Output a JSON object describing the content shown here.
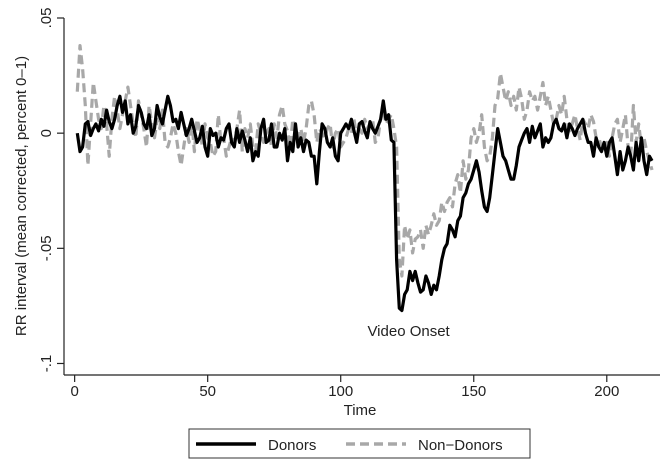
{
  "chart_data": {
    "type": "line",
    "title": "",
    "xlabel": "Time",
    "ylabel": "RR interval (mean corrected, percent 0–1)",
    "xlim": [
      -4,
      220
    ],
    "ylim": [
      -0.105,
      0.05
    ],
    "xticks": [
      0,
      50,
      100,
      150,
      200
    ],
    "xtick_labels": [
      "0",
      "50",
      "100",
      "150",
      "200"
    ],
    "yticks": [
      -0.1,
      -0.05,
      0,
      0.05
    ],
    "ytick_labels": [
      "-.1",
      "-.05",
      "0",
      ".05"
    ],
    "grid": false,
    "legend_position": "bottom",
    "annotation": {
      "text": "Video Onset",
      "x": 121,
      "y": -0.086
    },
    "series": [
      {
        "name": "Donors",
        "color": "#000000",
        "style": "solid",
        "x": [
          1,
          2,
          3,
          4,
          5,
          6,
          7,
          8,
          9,
          10,
          11,
          12,
          13,
          14,
          15,
          16,
          17,
          18,
          19,
          20,
          21,
          22,
          23,
          24,
          25,
          26,
          27,
          28,
          29,
          30,
          31,
          32,
          33,
          34,
          35,
          36,
          37,
          38,
          39,
          40,
          41,
          42,
          43,
          44,
          45,
          46,
          47,
          48,
          49,
          50,
          51,
          52,
          53,
          54,
          55,
          56,
          57,
          58,
          59,
          60,
          61,
          62,
          63,
          64,
          65,
          66,
          67,
          68,
          69,
          70,
          71,
          72,
          73,
          74,
          75,
          76,
          77,
          78,
          79,
          80,
          81,
          82,
          83,
          84,
          85,
          86,
          87,
          88,
          89,
          90,
          91,
          92,
          93,
          94,
          95,
          96,
          97,
          98,
          99,
          100,
          101,
          102,
          103,
          104,
          105,
          106,
          107,
          108,
          109,
          110,
          111,
          112,
          113,
          114,
          115,
          116,
          117,
          118,
          119,
          120,
          121,
          122,
          123,
          124,
          125,
          126,
          127,
          128,
          129,
          130,
          131,
          132,
          133,
          134,
          135,
          136,
          137,
          138,
          139,
          140,
          141,
          142,
          143,
          144,
          145,
          146,
          147,
          148,
          149,
          150,
          151,
          152,
          153,
          154,
          155,
          156,
          157,
          158,
          159,
          160,
          161,
          162,
          163,
          164,
          165,
          166,
          167,
          168,
          169,
          170,
          171,
          172,
          173,
          174,
          175,
          176,
          177,
          178,
          179,
          180,
          181,
          182,
          183,
          184,
          185,
          186,
          187,
          188,
          189,
          190,
          191,
          192,
          193,
          194,
          195,
          196,
          197,
          198,
          199,
          200,
          201,
          202,
          203,
          204,
          205,
          206,
          207,
          208,
          209,
          210,
          211,
          212,
          213,
          214,
          215,
          216,
          217
        ],
        "values": [
          0,
          -0.008,
          -0.006,
          0.004,
          0.005,
          -0.001,
          0.002,
          0.004,
          0.001,
          0.006,
          0.003,
          0.01,
          0.005,
          0.002,
          0.006,
          0.012,
          0.016,
          0.009,
          0.014,
          0.004,
          0.008,
          0.0,
          0.003,
          0.012,
          0.009,
          0.004,
          0.002,
          0.008,
          -0.001,
          0.002,
          0.012,
          0.007,
          0.004,
          0.01,
          0.016,
          0.012,
          0.005,
          0.006,
          0.002,
          0.009,
          0.004,
          -0.001,
          0.002,
          0.006,
          0.001,
          -0.004,
          -0.002,
          0.003,
          -0.006,
          -0.01,
          0.002,
          -0.001,
          0.0,
          -0.006,
          -0.002,
          -0.003,
          0.002,
          0.004,
          -0.004,
          -0.006,
          0.002,
          -0.004,
          0.001,
          -0.003,
          -0.008,
          -0.002,
          -0.012,
          -0.008,
          -0.01,
          0.002,
          0.006,
          -0.004,
          -0.003,
          0.004,
          -0.006,
          -0.006,
          0.0,
          -0.003,
          0.002,
          -0.012,
          -0.004,
          -0.008,
          0.004,
          -0.006,
          -0.002,
          -0.008,
          -0.003,
          -0.004,
          -0.01,
          -0.01,
          -0.022,
          -0.008,
          0.004,
          0.002,
          -0.004,
          -0.006,
          -0.002,
          -0.01,
          -0.012,
          0.0,
          0.002,
          0.004,
          0.002,
          0.006,
          0.001,
          -0.004,
          0.004,
          0.005,
          0.001,
          -0.002,
          0.005,
          0.002,
          0.0,
          0.003,
          0.006,
          0.014,
          0.006,
          0.008,
          -0.003,
          -0.004,
          -0.055,
          -0.076,
          -0.077,
          -0.07,
          -0.068,
          -0.06,
          -0.064,
          -0.06,
          -0.065,
          -0.069,
          -0.068,
          -0.062,
          -0.065,
          -0.07,
          -0.066,
          -0.068,
          -0.062,
          -0.055,
          -0.05,
          -0.048,
          -0.04,
          -0.042,
          -0.045,
          -0.038,
          -0.036,
          -0.028,
          -0.026,
          -0.022,
          -0.02,
          -0.016,
          -0.012,
          -0.017,
          -0.025,
          -0.032,
          -0.034,
          -0.028,
          -0.018,
          -0.008,
          0.002,
          -0.004,
          -0.01,
          -0.012,
          -0.016,
          -0.02,
          -0.02,
          -0.014,
          -0.006,
          -0.003,
          0.0,
          0.002,
          -0.004,
          0.003,
          -0.002,
          0.001,
          0.004,
          -0.006,
          -0.002,
          -0.004,
          -0.002,
          0.004,
          0.006,
          0.002,
          0.001,
          0.004,
          -0.002,
          0.004,
          0.002,
          -0.001,
          0.002,
          0.004,
          0.006,
          0.0,
          -0.004,
          -0.004,
          -0.01,
          -0.002,
          -0.006,
          -0.008,
          -0.004,
          -0.01,
          -0.004,
          -0.002,
          -0.01,
          -0.018,
          -0.008,
          -0.016,
          -0.012,
          -0.006,
          -0.01,
          -0.016,
          -0.004,
          -0.012,
          -0.002,
          -0.012,
          -0.018,
          -0.01,
          -0.012
        ]
      },
      {
        "name": "Non−Donors",
        "color": "#a8a8a8",
        "style": "dashed",
        "x": [
          1,
          2,
          3,
          4,
          5,
          6,
          7,
          8,
          9,
          10,
          11,
          12,
          13,
          14,
          15,
          16,
          17,
          18,
          19,
          20,
          21,
          22,
          23,
          24,
          25,
          26,
          27,
          28,
          29,
          30,
          31,
          32,
          33,
          34,
          35,
          36,
          37,
          38,
          39,
          40,
          41,
          42,
          43,
          44,
          45,
          46,
          47,
          48,
          49,
          50,
          51,
          52,
          53,
          54,
          55,
          56,
          57,
          58,
          59,
          60,
          61,
          62,
          63,
          64,
          65,
          66,
          67,
          68,
          69,
          70,
          71,
          72,
          73,
          74,
          75,
          76,
          77,
          78,
          79,
          80,
          81,
          82,
          83,
          84,
          85,
          86,
          87,
          88,
          89,
          90,
          91,
          92,
          93,
          94,
          95,
          96,
          97,
          98,
          99,
          100,
          101,
          102,
          103,
          104,
          105,
          106,
          107,
          108,
          109,
          110,
          111,
          112,
          113,
          114,
          115,
          116,
          117,
          118,
          119,
          120,
          121,
          122,
          123,
          124,
          125,
          126,
          127,
          128,
          129,
          130,
          131,
          132,
          133,
          134,
          135,
          136,
          137,
          138,
          139,
          140,
          141,
          142,
          143,
          144,
          145,
          146,
          147,
          148,
          149,
          150,
          151,
          152,
          153,
          154,
          155,
          156,
          157,
          158,
          159,
          160,
          161,
          162,
          163,
          164,
          165,
          166,
          167,
          168,
          169,
          170,
          171,
          172,
          173,
          174,
          175,
          176,
          177,
          178,
          179,
          180,
          181,
          182,
          183,
          184,
          185,
          186,
          187,
          188,
          189,
          190,
          191,
          192,
          193,
          194,
          195,
          196,
          197,
          198,
          199,
          200,
          201,
          202,
          203,
          204,
          205,
          206,
          207,
          208,
          209,
          210,
          211,
          212,
          213,
          214,
          215,
          216,
          217
        ],
        "values": [
          0.018,
          0.038,
          0.028,
          0.012,
          -0.014,
          0.004,
          0.022,
          0.014,
          0.006,
          0.002,
          0.012,
          0.004,
          -0.01,
          0.006,
          0.016,
          0.01,
          0.002,
          0.008,
          0.014,
          0.02,
          0.012,
          0.004,
          -0.002,
          0.014,
          0.008,
          0.002,
          -0.006,
          0.012,
          0.004,
          -0.002,
          0.006,
          0.002,
          0.01,
          -0.004,
          -0.006,
          -0.002,
          0.004,
          0.0,
          -0.008,
          -0.014,
          -0.006,
          0.002,
          -0.004,
          0.006,
          -0.008,
          0.006,
          0.002,
          -0.006,
          0.004,
          -0.002,
          -0.004,
          -0.01,
          -0.008,
          0.008,
          -0.004,
          -0.002,
          -0.01,
          -0.006,
          -0.002,
          -0.004,
          0.002,
          0.01,
          -0.008,
          0.002,
          -0.002,
          0.004,
          -0.006,
          -0.008,
          0.004,
          0.0,
          -0.004,
          0.0,
          0.002,
          -0.006,
          0.004,
          -0.002,
          0.008,
          0.012,
          0.004,
          0.001,
          -0.006,
          0.006,
          0.0,
          -0.002,
          0.002,
          -0.004,
          0.002,
          0.012,
          0.014,
          0.008,
          -0.004,
          0.002,
          0.0,
          -0.002,
          0.002,
          0.004,
          -0.006,
          0.0,
          0.002,
          -0.006,
          -0.004,
          -0.002,
          0.002,
          0.0,
          0.006,
          -0.002,
          0.002,
          0.0,
          0.006,
          0.002,
          0.004,
          0.006,
          -0.004,
          -0.002,
          0.006,
          0.01,
          0.004,
          0.006,
          0.008,
          0.002,
          -0.006,
          -0.055,
          -0.062,
          -0.04,
          -0.046,
          -0.042,
          -0.052,
          -0.046,
          -0.045,
          -0.042,
          -0.05,
          -0.04,
          -0.044,
          -0.04,
          -0.035,
          -0.04,
          -0.038,
          -0.03,
          -0.034,
          -0.03,
          -0.028,
          -0.032,
          -0.022,
          -0.018,
          -0.026,
          -0.012,
          -0.02,
          -0.016,
          -0.002,
          0.002,
          -0.004,
          0.0,
          0.008,
          -0.006,
          -0.012,
          -0.01,
          -0.002,
          0.012,
          0.015,
          0.026,
          0.02,
          0.014,
          0.018,
          0.012,
          0.016,
          0.01,
          0.02,
          0.015,
          0.006,
          0.01,
          0.018,
          0.014,
          0.016,
          0.01,
          0.016,
          0.022,
          0.012,
          0.016,
          0.01,
          0.004,
          0.006,
          0.012,
          0.008,
          0.016,
          0.006,
          0.001,
          0.004,
          0.008,
          0.002,
          -0.003,
          0.006,
          0.004,
          0.002,
          0.008,
          0.005,
          -0.002,
          -0.002,
          -0.006,
          -0.008,
          -0.004,
          -0.01,
          -0.002,
          0.004,
          0.006,
          -0.004,
          0.002,
          0.008,
          -0.006,
          -0.01,
          0.012,
          -0.004,
          0.004,
          -0.006,
          -0.002,
          -0.008,
          -0.012,
          -0.016
        ]
      }
    ]
  }
}
